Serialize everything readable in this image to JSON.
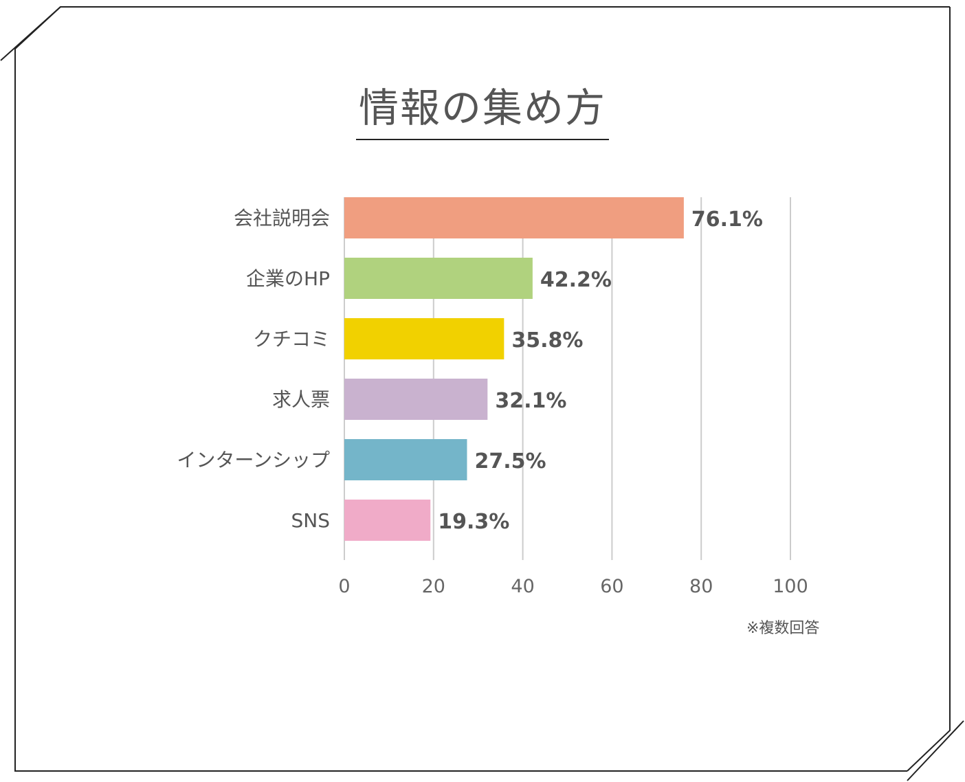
{
  "title": "情報の集め方",
  "note": "※複数回答",
  "chart_data": {
    "type": "bar",
    "orientation": "horizontal",
    "categories": [
      "会社説明会",
      "企業のHP",
      "クチコミ",
      "求人票",
      "インターンシップ",
      "SNS"
    ],
    "values": [
      76.1,
      42.2,
      35.8,
      32.1,
      27.5,
      19.3
    ],
    "value_labels": [
      "76.1%",
      "42.2%",
      "35.8%",
      "32.1%",
      "27.5%",
      "19.3%"
    ],
    "colors": [
      "#f09e80",
      "#b0d27e",
      "#f1d100",
      "#c9b2cf",
      "#74b5c9",
      "#f0abc8"
    ],
    "xlim": [
      0,
      100
    ],
    "x_ticks": [
      "0",
      "20",
      "40",
      "60",
      "80",
      "100"
    ],
    "grid": "vertical",
    "title": "情報の集め方"
  }
}
